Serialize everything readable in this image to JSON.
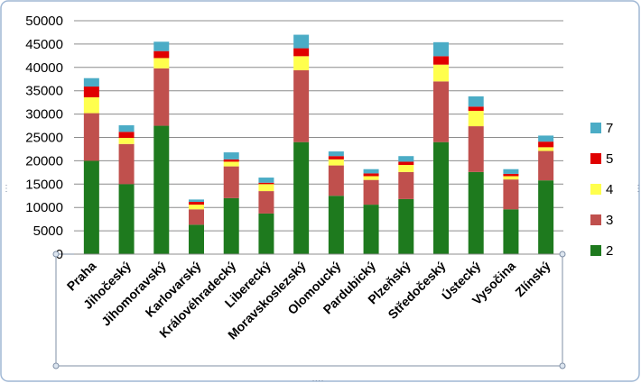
{
  "chart_data": {
    "type": "bar",
    "stacked": true,
    "title": "",
    "xlabel": "",
    "ylabel": "",
    "ylim": [
      0,
      50000
    ],
    "y_ticks": [
      0,
      5000,
      10000,
      15000,
      20000,
      25000,
      30000,
      35000,
      40000,
      45000,
      50000
    ],
    "grid": true,
    "legend_position": "right",
    "categories": [
      "Praha",
      "Jihočeský",
      "Jihomoravský",
      "Karlovarský",
      "Královéhradecký",
      "Liberecký",
      "Moravskoslezský",
      "Olomoucký",
      "Pardubický",
      "Plzeňský",
      "Středočeský",
      "Ústecký",
      "Vysočina",
      "Zlínský"
    ],
    "series": [
      {
        "name": "2",
        "color": "#1E7A1E",
        "values": [
          20000,
          15000,
          27500,
          6300,
          12000,
          8700,
          24000,
          12500,
          10600,
          11800,
          24000,
          17600,
          9600,
          15800
        ]
      },
      {
        "name": "3",
        "color": "#C0504D",
        "values": [
          10200,
          8600,
          12300,
          3300,
          6800,
          4800,
          15400,
          6500,
          5300,
          5800,
          13000,
          9800,
          6400,
          6300
        ]
      },
      {
        "name": "4",
        "color": "#FFFF4D",
        "values": [
          3400,
          1300,
          2200,
          1000,
          1000,
          1500,
          3000,
          1300,
          800,
          1500,
          3600,
          3300,
          700,
          800
        ]
      },
      {
        "name": "5",
        "color": "#E00000",
        "values": [
          2300,
          1300,
          1500,
          600,
          500,
          300,
          1700,
          700,
          600,
          700,
          1800,
          900,
          500,
          1200
        ]
      },
      {
        "name": "7",
        "color": "#4BACC6",
        "values": [
          1800,
          1400,
          2000,
          500,
          1500,
          1100,
          2900,
          1000,
          900,
          1200,
          3000,
          2200,
          1000,
          1300
        ]
      }
    ],
    "legend_order": [
      "7",
      "5",
      "4",
      "3",
      "2"
    ]
  }
}
